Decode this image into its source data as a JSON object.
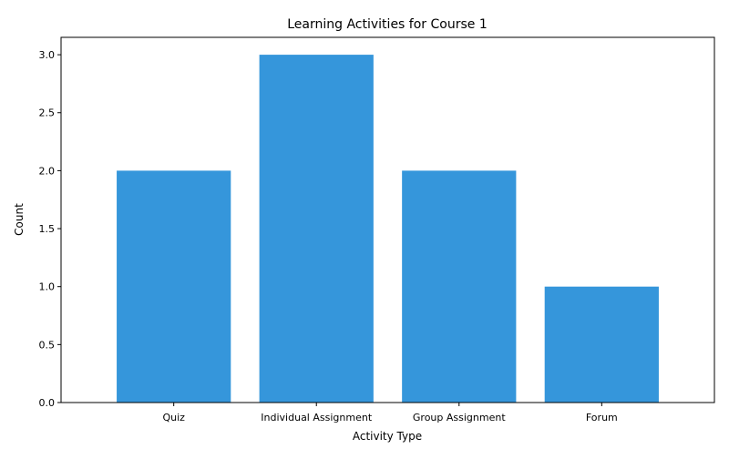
{
  "chart_data": {
    "type": "bar",
    "title": "Learning Activities for Course 1",
    "xlabel": "Activity Type",
    "ylabel": "Count",
    "categories": [
      "Quiz",
      "Individual Assignment",
      "Group Assignment",
      "Forum"
    ],
    "values": [
      2,
      3,
      2,
      1
    ],
    "ylim": [
      0,
      3.15
    ],
    "yticks": [
      "0.0",
      "0.5",
      "1.0",
      "1.5",
      "2.0",
      "2.5",
      "3.0"
    ],
    "grid": false,
    "legend": "none",
    "bar_color": "#3596db"
  }
}
